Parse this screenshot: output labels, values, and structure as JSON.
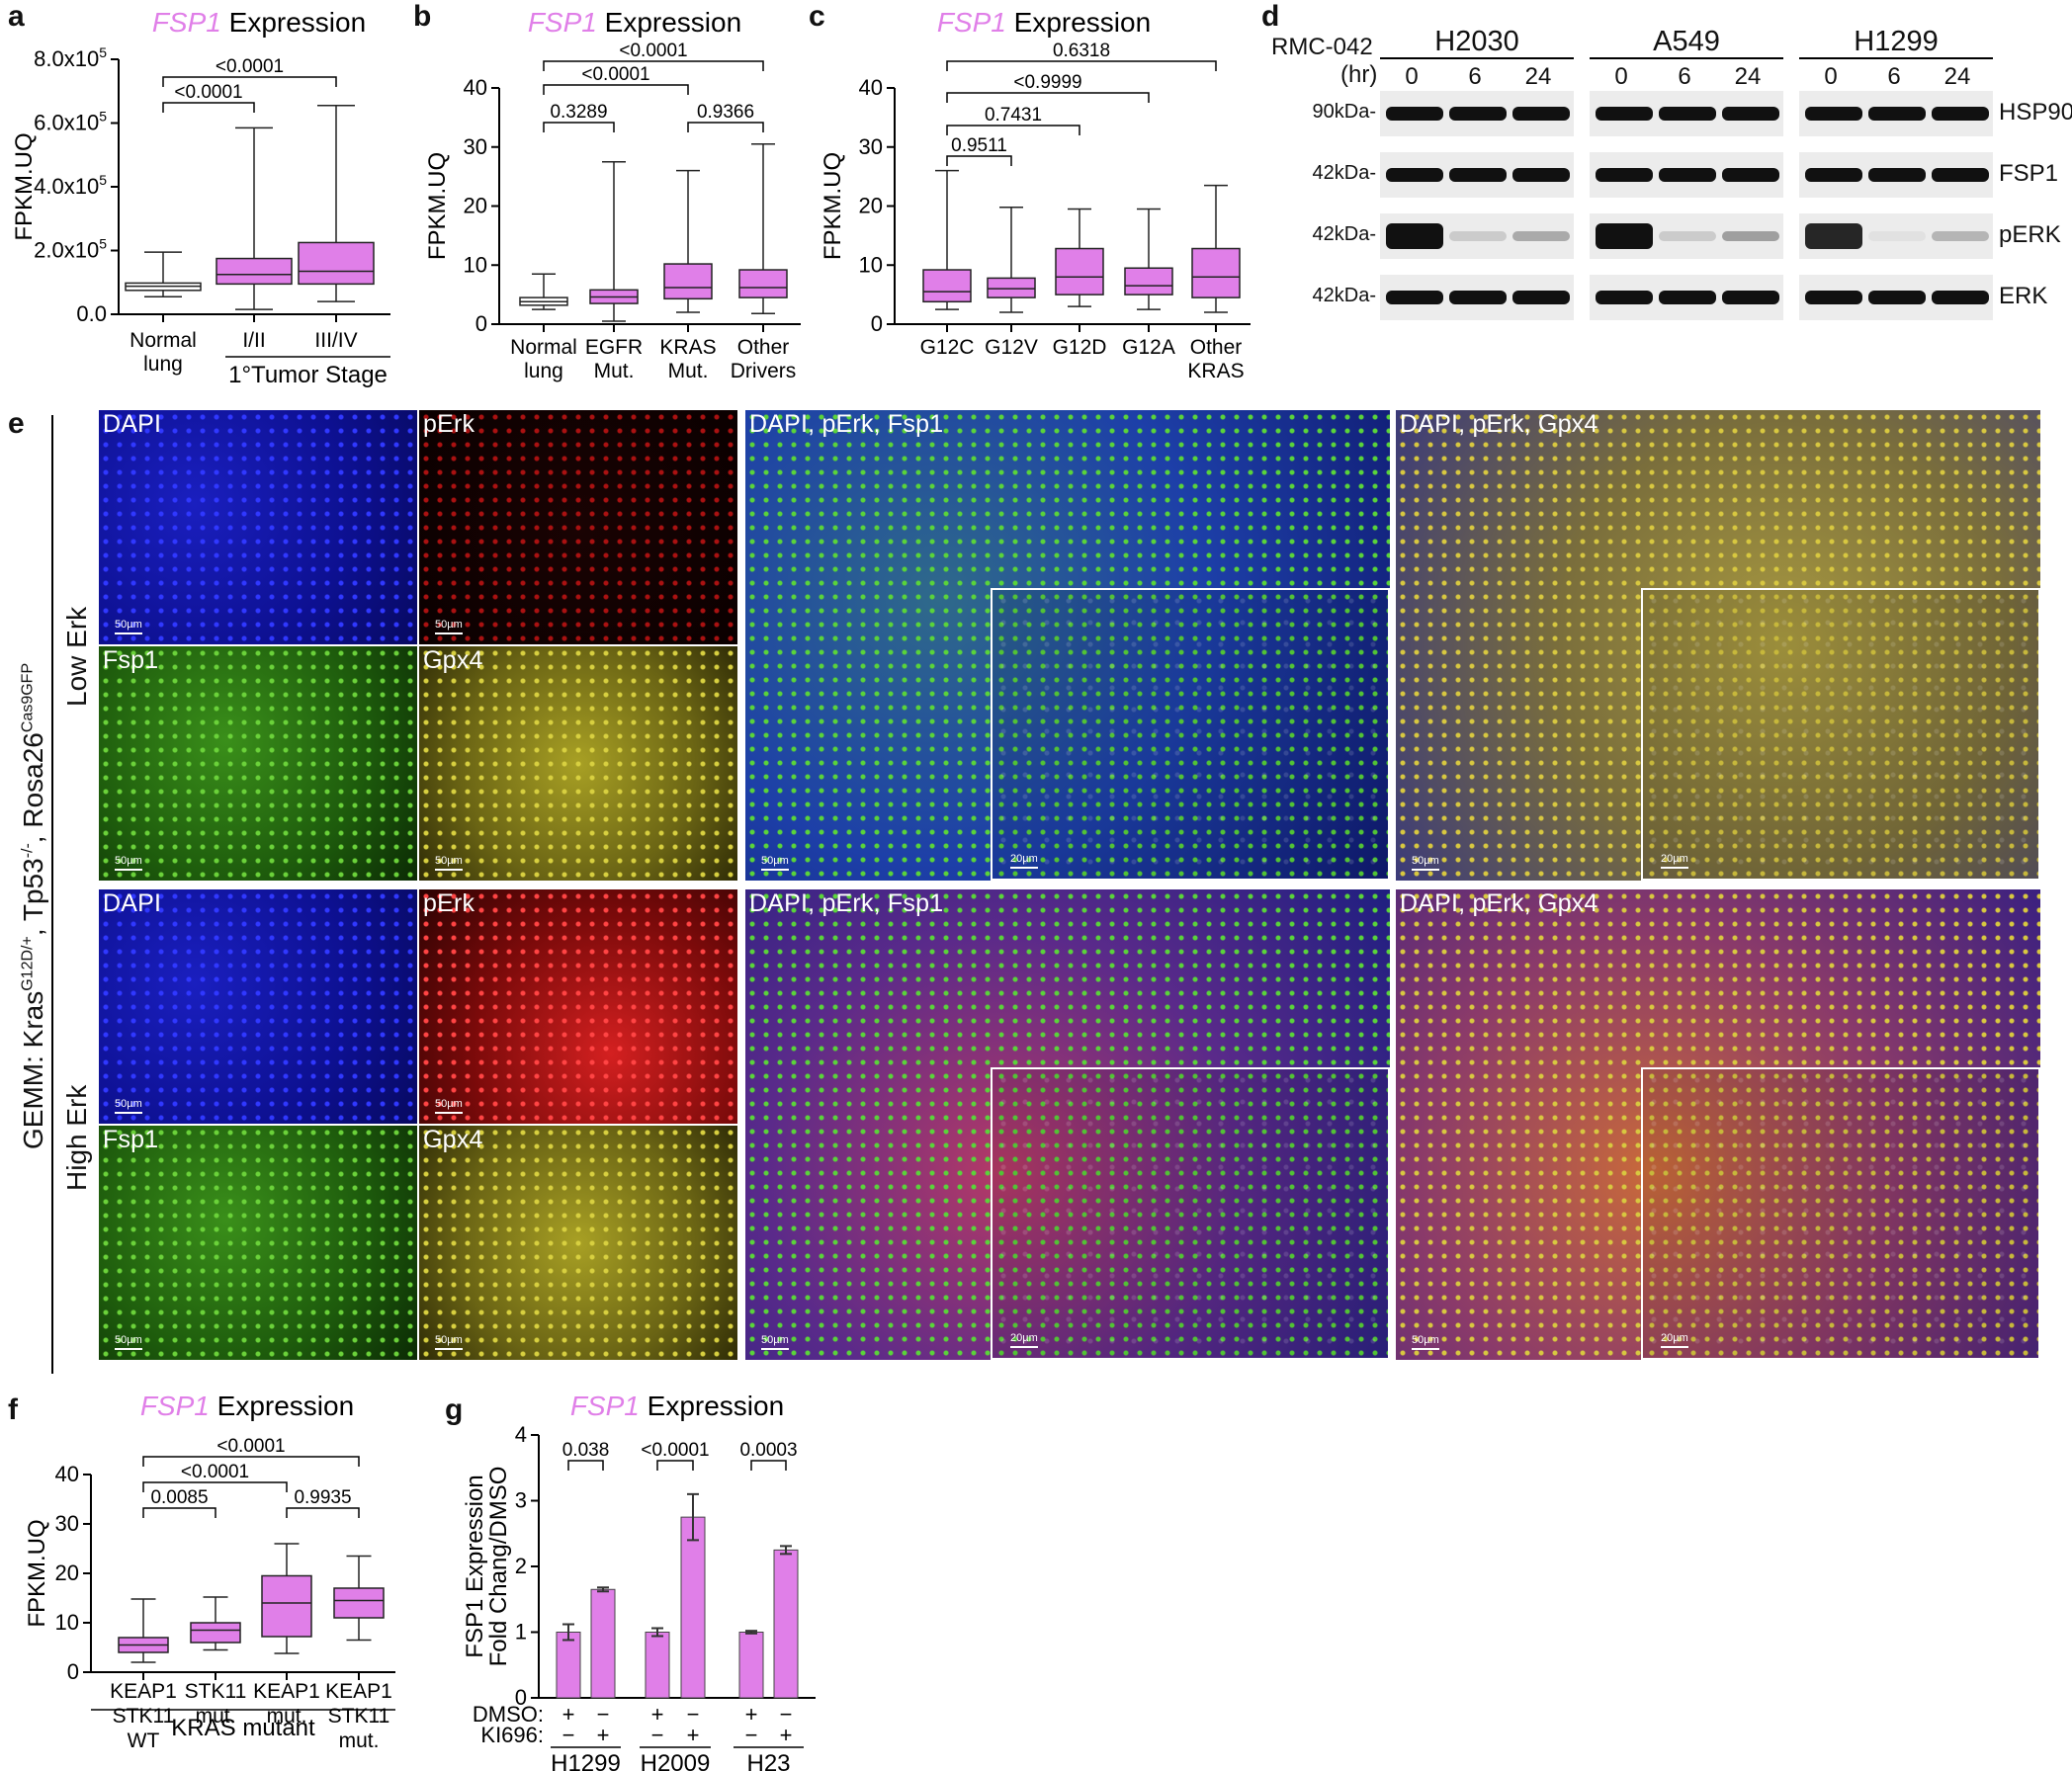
{
  "panel_letters": {
    "a": "a",
    "b": "b",
    "c": "c",
    "d": "d",
    "e": "e",
    "f": "f",
    "g": "g"
  },
  "common": {
    "gene": "FSP1",
    "expression": " Expression",
    "ylabel": "FPKM.UQ",
    "box_color": "#e07fe8"
  },
  "panel_a": {
    "yticks": [
      "0.0",
      "2.0x10",
      "4.0x10",
      "6.0x10",
      "8.0x10"
    ],
    "ytick_exp": "5",
    "categories": [
      "Normal\nlung",
      "I/II",
      "III/IV"
    ],
    "group_label": "1°Tumor Stage",
    "pvals": [
      "<0.0001",
      "<0.0001"
    ]
  },
  "panel_b": {
    "yticks": [
      "0",
      "10",
      "20",
      "30",
      "40"
    ],
    "categories": [
      "Normal\nlung",
      "EGFR\nMut.",
      "KRAS\nMut.",
      "Other\nDrivers"
    ],
    "pvals": [
      "0.3289",
      "<0.0001",
      "<0.0001",
      "0.9366"
    ]
  },
  "panel_c": {
    "yticks": [
      "0",
      "10",
      "20",
      "30",
      "40"
    ],
    "categories": [
      "G12C",
      "G12V",
      "G12D",
      "G12A",
      "Other\nKRAS"
    ],
    "pvals": [
      "0.9511",
      "0.7431",
      "<0.9999",
      "0.6318"
    ]
  },
  "panel_d": {
    "treatment": "RMC-042",
    "time_unit": "(hr)",
    "cell_lines": [
      "H2030",
      "A549",
      "H1299"
    ],
    "timepoints": [
      "0",
      "6",
      "24"
    ],
    "rows": [
      {
        "mw": "90kDa-",
        "protein": "HSP90"
      },
      {
        "mw": "42kDa-",
        "protein": "FSP1"
      },
      {
        "mw": "42kDa-",
        "protein": "pERK"
      },
      {
        "mw": "42kDa-",
        "protein": "ERK"
      }
    ]
  },
  "panel_e": {
    "side_label_main": "GEMM: Kras",
    "side_sup1": "G12D/+",
    "side_mid": ", Tp53",
    "side_sup2": "-/-",
    "side_mid2": ", Rosa26",
    "side_sup3": "Cas9GFP",
    "row_labels": [
      "Low Erk",
      "High Erk"
    ],
    "tile_labels": [
      "DAPI",
      "pErk",
      "Fsp1",
      "Gpx4"
    ],
    "merge_labels": [
      "DAPI, pErk, Fsp1",
      "DAPI, pErk, Gpx4"
    ],
    "scale_50": "50µm",
    "scale_20": "20µm"
  },
  "panel_f": {
    "yticks": [
      "0",
      "10",
      "20",
      "30",
      "40"
    ],
    "categories": [
      "KEAP1\nSTK11\nWT",
      "STK11\nmut.",
      "KEAP1\nmut.",
      "KEAP1\nSTK11\nmut."
    ],
    "group_label": "KRAS mutant",
    "pvals": [
      "0.0085",
      "<0.0001",
      "<0.0001",
      "0.9935"
    ]
  },
  "panel_g": {
    "ylabel_line1": "FSP1 Expression",
    "ylabel_line2": "Fold Chang/DMSO",
    "yticks": [
      "0",
      "1",
      "2",
      "3",
      "4"
    ],
    "row_labels": [
      "DMSO:",
      "KI696:"
    ],
    "signs_dmso": [
      "+",
      "−",
      "+",
      "−",
      "+",
      "−"
    ],
    "signs_ki": [
      "−",
      "+",
      "−",
      "+",
      "−",
      "+"
    ],
    "cell_lines": [
      "H1299",
      "H2009",
      "H23"
    ],
    "pvals": [
      "0.038",
      "<0.0001",
      "0.0003"
    ]
  },
  "chart_data": [
    {
      "type": "box",
      "panel": "a",
      "categories": [
        "Normal lung",
        "I/II",
        "III/IV"
      ],
      "ylim": [
        0,
        800000
      ],
      "boxes": [
        {
          "min": 55000,
          "q1": 75000,
          "median": 88000,
          "q3": 98000,
          "max": 195000
        },
        {
          "min": 15000,
          "q1": 95000,
          "median": 125000,
          "q3": 175000,
          "max": 585000
        },
        {
          "min": 40000,
          "q1": 95000,
          "median": 135000,
          "q3": 225000,
          "max": 655000
        }
      ]
    },
    {
      "type": "box",
      "panel": "b",
      "categories": [
        "Normal lung",
        "EGFR Mut.",
        "KRAS Mut.",
        "Other Drivers"
      ],
      "ylim": [
        0,
        40
      ],
      "boxes": [
        {
          "min": 2.5,
          "q1": 3.2,
          "median": 3.8,
          "q3": 4.5,
          "max": 8.5
        },
        {
          "min": 0.5,
          "q1": 3.5,
          "median": 4.6,
          "q3": 5.8,
          "max": 27.5
        },
        {
          "min": 2,
          "q1": 4.3,
          "median": 6.2,
          "q3": 10.2,
          "max": 26
        },
        {
          "min": 1.8,
          "q1": 4.5,
          "median": 6.2,
          "q3": 9.2,
          "max": 30.5
        }
      ]
    },
    {
      "type": "box",
      "panel": "c",
      "categories": [
        "G12C",
        "G12V",
        "G12D",
        "G12A",
        "Other KRAS"
      ],
      "ylim": [
        0,
        40
      ],
      "boxes": [
        {
          "min": 2.5,
          "q1": 3.8,
          "median": 5.5,
          "q3": 9.2,
          "max": 26
        },
        {
          "min": 2,
          "q1": 4.5,
          "median": 6,
          "q3": 7.8,
          "max": 19.8
        },
        {
          "min": 3,
          "q1": 5,
          "median": 8,
          "q3": 12.8,
          "max": 19.5
        },
        {
          "min": 2.5,
          "q1": 5,
          "median": 6.5,
          "q3": 9.5,
          "max": 19.5
        },
        {
          "min": 2,
          "q1": 4.5,
          "median": 8,
          "q3": 12.8,
          "max": 23.5
        }
      ]
    },
    {
      "type": "box",
      "panel": "f",
      "categories": [
        "KEAP1 STK11 WT",
        "STK11 mut.",
        "KEAP1 mut.",
        "KEAP1 STK11 mut."
      ],
      "ylim": [
        0,
        40
      ],
      "boxes": [
        {
          "min": 2,
          "q1": 4,
          "median": 5.5,
          "q3": 7,
          "max": 14.8
        },
        {
          "min": 4.5,
          "q1": 6,
          "median": 8.5,
          "q3": 10,
          "max": 15.2
        },
        {
          "min": 3.8,
          "q1": 7.2,
          "median": 14,
          "q3": 19.5,
          "max": 26
        },
        {
          "min": 6.5,
          "q1": 11,
          "median": 14.5,
          "q3": 17,
          "max": 23.5
        }
      ]
    },
    {
      "type": "bar",
      "panel": "g",
      "categories": [
        "H1299 DMSO",
        "H1299 KI696",
        "H2009 DMSO",
        "H2009 KI696",
        "H23 DMSO",
        "H23 KI696"
      ],
      "ylim": [
        0,
        4
      ],
      "values": [
        1.0,
        1.65,
        1.0,
        2.75,
        1.0,
        2.25
      ],
      "errors": [
        0.12,
        0.03,
        0.06,
        0.35,
        0.02,
        0.06
      ]
    }
  ]
}
